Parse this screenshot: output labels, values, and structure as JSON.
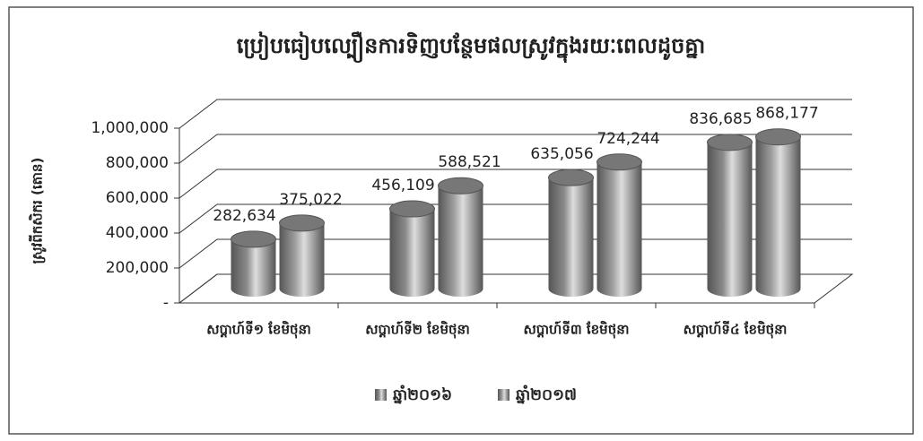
{
  "chart_data": {
    "type": "bar3d",
    "title": "ប្រៀបធៀបល្បឿនការទិញបន្ថែមផលស្រូវក្នុងរយៈពេលដូចគ្នា",
    "y_label": "ស្រូវពីកសិករ (តោន)",
    "categories": [
      "សប្តាហ៍ទី១ ខែមិថុនា",
      "សប្តាហ៍ទី២ ខែមិថុនា",
      "សប្តាហ៍ទី៣ ខែមិថុនា",
      "សប្តាហ៍ទី៤ ខែមិថុនា"
    ],
    "series": [
      {
        "name": "ឆ្នាំ២០១៦",
        "color": "#8a8a8a",
        "values": [
          282634,
          456109,
          635056,
          836685
        ],
        "value_labels": [
          "282,634",
          "456,109",
          "635,056",
          "836,685"
        ]
      },
      {
        "name": "ឆ្នាំ២០១៧",
        "color": "#9e9e9e",
        "values": [
          375022,
          588521,
          724244,
          868177
        ],
        "value_labels": [
          "375,022",
          "588,521",
          "724,244",
          "868,177"
        ]
      }
    ],
    "ylim": [
      0,
      1000000
    ],
    "yticks": [
      {
        "value": 0,
        "label": "-"
      },
      {
        "value": 200000,
        "label": "200,000"
      },
      {
        "value": 400000,
        "label": "400,000"
      },
      {
        "value": 600000,
        "label": "600,000"
      },
      {
        "value": 800000,
        "label": "800,000"
      },
      {
        "value": 1000000,
        "label": "1,000,000"
      }
    ],
    "grid": true,
    "legend": "bottom"
  }
}
